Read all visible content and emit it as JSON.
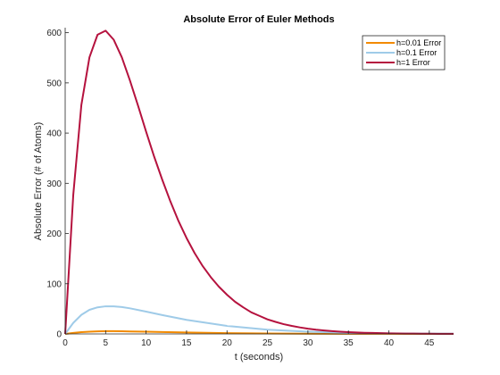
{
  "chart_data": {
    "type": "line",
    "title": "Absolute Error of Euler Methods",
    "xlabel": "t (seconds)",
    "ylabel": "Absolute Error (# of Atoms)",
    "xlim": [
      0,
      48
    ],
    "ylim": [
      0,
      610
    ],
    "xticks": [
      0,
      5,
      10,
      15,
      20,
      25,
      30,
      35,
      40,
      45
    ],
    "yticks": [
      0,
      100,
      200,
      300,
      400,
      500,
      600
    ],
    "grid": false,
    "legend_position": "top-right",
    "series": [
      {
        "name": "h=0.01 Error",
        "color": "#f28a00",
        "x": [
          0,
          1,
          2,
          3,
          4,
          5,
          6,
          7,
          8,
          10,
          12,
          15,
          20,
          25,
          30,
          35,
          40,
          48
        ],
        "y": [
          0,
          2,
          3.5,
          4.5,
          5.2,
          5.5,
          5.5,
          5.3,
          5.0,
          4.4,
          3.7,
          2.8,
          1.6,
          0.9,
          0.5,
          0.25,
          0.12,
          0.04
        ]
      },
      {
        "name": "h=0.1 Error",
        "color": "#9fcbe8",
        "x": [
          0,
          1,
          2,
          3,
          4,
          5,
          6,
          7,
          8,
          10,
          12,
          15,
          20,
          25,
          30,
          35,
          40,
          48
        ],
        "y": [
          0,
          22,
          38,
          48,
          53,
          55,
          55,
          53.5,
          51,
          44.5,
          37.5,
          28,
          16,
          8.5,
          4.5,
          2.2,
          1.1,
          0.4
        ]
      },
      {
        "name": "h=1 Error",
        "color": "#b5123e",
        "x": [
          0,
          1,
          2,
          3,
          4,
          5,
          6,
          7,
          8,
          9,
          10,
          11,
          12,
          13,
          14,
          15,
          16,
          17,
          18,
          19,
          20,
          21,
          22,
          23,
          24,
          25,
          26,
          27,
          28,
          29,
          30,
          31,
          32,
          33,
          34,
          35,
          36,
          37,
          38,
          39,
          40,
          41,
          42,
          43,
          44,
          45,
          46,
          47,
          48
        ],
        "y": [
          0,
          277,
          456,
          551,
          596,
          604,
          586,
          551,
          505,
          455,
          403,
          353,
          307,
          264,
          225,
          191,
          161,
          135,
          113,
          94,
          78,
          64,
          53,
          43,
          36,
          29,
          24,
          19.5,
          16,
          13,
          10.5,
          8.5,
          6.9,
          5.6,
          4.5,
          3.6,
          2.9,
          2.3,
          1.9,
          1.5,
          1.2,
          0.95,
          0.76,
          0.6,
          0.48,
          0.38,
          0.3,
          0.24,
          0.19
        ]
      }
    ]
  }
}
